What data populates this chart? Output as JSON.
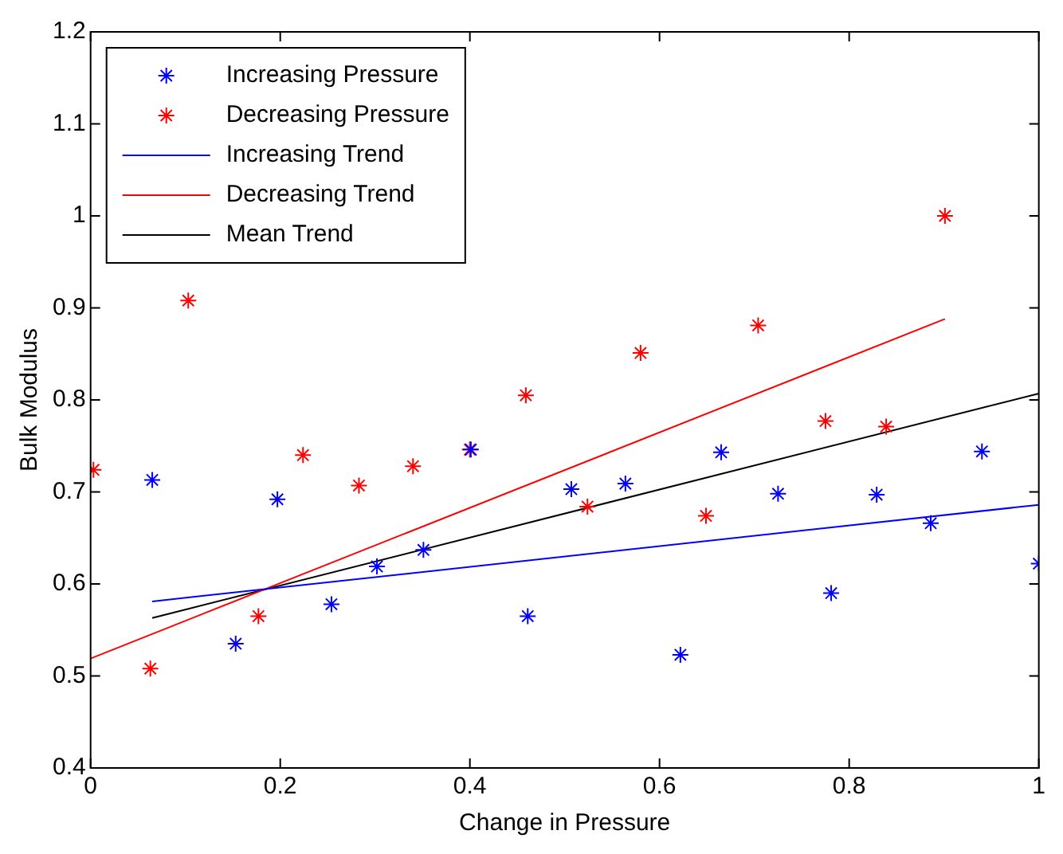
{
  "chart_data": {
    "type": "scatter",
    "xlabel": "Change in Pressure",
    "ylabel": "Bulk Modulus",
    "xlim": [
      0,
      1
    ],
    "xticks": [
      0,
      0.2,
      0.4,
      0.6,
      0.8,
      1
    ],
    "ylim": [
      0.4,
      1.2
    ],
    "yticks": [
      0.4,
      0.5,
      0.6,
      0.7,
      0.8,
      0.9,
      1,
      1.1,
      1.2
    ],
    "grid": false,
    "legend": "top left",
    "series": [
      {
        "name": "Increasing Pressure",
        "type": "scatter",
        "marker": "cross",
        "color": "#0000ff",
        "x": [
          0.065,
          0.153,
          0.197,
          0.254,
          0.302,
          0.351,
          0.401,
          0.461,
          0.507,
          0.564,
          0.622,
          0.665,
          0.725,
          0.781,
          0.829,
          0.886,
          0.94,
          1.0
        ],
        "values": [
          0.713,
          0.535,
          0.692,
          0.578,
          0.619,
          0.637,
          0.746,
          0.565,
          0.703,
          0.709,
          0.523,
          0.743,
          0.698,
          0.59,
          0.697,
          0.666,
          0.744,
          0.622
        ]
      },
      {
        "name": "Decreasing Pressure",
        "type": "scatter",
        "marker": "cross",
        "color": "#ff0000",
        "x": [
          0.003,
          0.063,
          0.103,
          0.177,
          0.224,
          0.283,
          0.34,
          0.4,
          0.459,
          0.524,
          0.58,
          0.649,
          0.704,
          0.775,
          0.839,
          0.901
        ],
        "values": [
          0.724,
          0.508,
          0.908,
          0.565,
          0.74,
          0.707,
          0.728,
          0.746,
          0.805,
          0.684,
          0.851,
          0.674,
          0.881,
          0.777,
          0.771,
          1.0
        ]
      },
      {
        "name": "Increasing Trend",
        "type": "line",
        "marker": "none",
        "line_style": "solid",
        "color": "#0000ff",
        "x": [
          0.065,
          1.0
        ],
        "values": [
          0.581,
          0.686
        ]
      },
      {
        "name": "Decreasing Trend",
        "type": "line",
        "marker": "none",
        "line_style": "solid",
        "color": "#ff0000",
        "x": [
          0,
          0.901
        ],
        "values": [
          0.519,
          0.888
        ]
      },
      {
        "name": "Mean Trend",
        "type": "line",
        "marker": "none",
        "line_style": "solid",
        "color": "#000000",
        "x": [
          0.065,
          1.0
        ],
        "values": [
          0.563,
          0.807
        ]
      }
    ]
  }
}
